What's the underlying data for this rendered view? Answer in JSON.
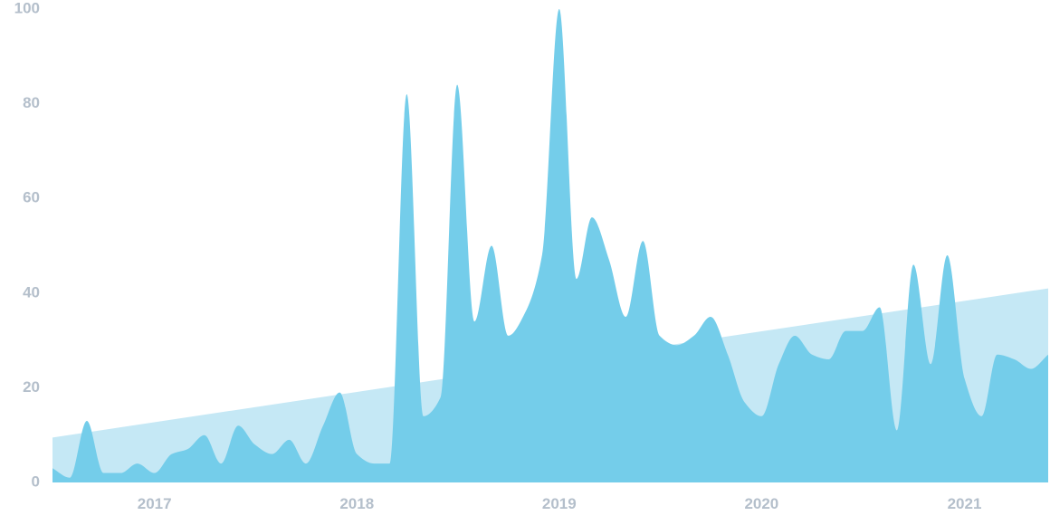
{
  "chart_data": {
    "type": "area",
    "title": "",
    "xlabel": "",
    "ylabel": "",
    "ylim": [
      0,
      100
    ],
    "xlim": [
      "2016-07-01",
      "2021-06-01"
    ],
    "y_ticks": [
      "0",
      "20",
      "40",
      "60",
      "80",
      "100"
    ],
    "x_ticks": [
      {
        "label": "2017",
        "date": "2017-01-01"
      },
      {
        "label": "2018",
        "date": "2018-01-01"
      },
      {
        "label": "2019",
        "date": "2019-01-01"
      },
      {
        "label": "2020",
        "date": "2020-01-01"
      },
      {
        "label": "2021",
        "date": "2021-01-01"
      }
    ],
    "grid": false,
    "legend": "none",
    "colors": {
      "series": "#74cdea",
      "trend": "#c5e8f5",
      "ticks": "#b4bfcb"
    },
    "series": [
      {
        "kind": "area",
        "x": [
          "2016-07-01",
          "2016-08-01",
          "2016-09-01",
          "2016-10-01",
          "2016-11-01",
          "2016-12-01",
          "2017-01-01",
          "2017-02-01",
          "2017-03-01",
          "2017-04-01",
          "2017-05-01",
          "2017-06-01",
          "2017-07-01",
          "2017-08-01",
          "2017-09-01",
          "2017-10-01",
          "2017-11-01",
          "2017-12-01",
          "2018-01-01",
          "2018-02-01",
          "2018-03-01",
          "2018-04-01",
          "2018-05-01",
          "2018-06-01",
          "2018-07-01",
          "2018-08-01",
          "2018-09-01",
          "2018-10-01",
          "2018-11-01",
          "2018-12-01",
          "2019-01-01",
          "2019-02-01",
          "2019-03-01",
          "2019-04-01",
          "2019-05-01",
          "2019-06-01",
          "2019-07-01",
          "2019-08-01",
          "2019-09-01",
          "2019-10-01",
          "2019-11-01",
          "2019-12-01",
          "2020-01-01",
          "2020-02-01",
          "2020-03-01",
          "2020-04-01",
          "2020-05-01",
          "2020-06-01",
          "2020-07-01",
          "2020-08-01",
          "2020-09-01",
          "2020-10-01",
          "2020-11-01",
          "2020-12-01",
          "2021-01-01",
          "2021-02-01",
          "2021-03-01",
          "2021-04-01",
          "2021-05-01",
          "2021-06-01"
        ],
        "values": [
          3,
          1,
          13,
          2,
          2,
          4,
          2,
          6,
          7,
          10,
          4,
          12,
          8,
          6,
          9,
          4,
          12,
          19,
          6,
          4,
          4,
          82,
          14,
          18,
          84,
          34,
          50,
          31,
          36,
          48,
          100,
          43,
          56,
          47,
          35,
          51,
          31,
          29,
          31,
          35,
          27,
          17,
          14,
          25,
          31,
          27,
          26,
          32,
          32,
          37,
          11,
          46,
          25,
          48,
          22,
          14,
          27,
          26,
          24,
          27
        ]
      },
      {
        "kind": "trend",
        "x": [
          "2016-07-01",
          "2021-06-01"
        ],
        "values": [
          9.5,
          41
        ]
      }
    ]
  }
}
